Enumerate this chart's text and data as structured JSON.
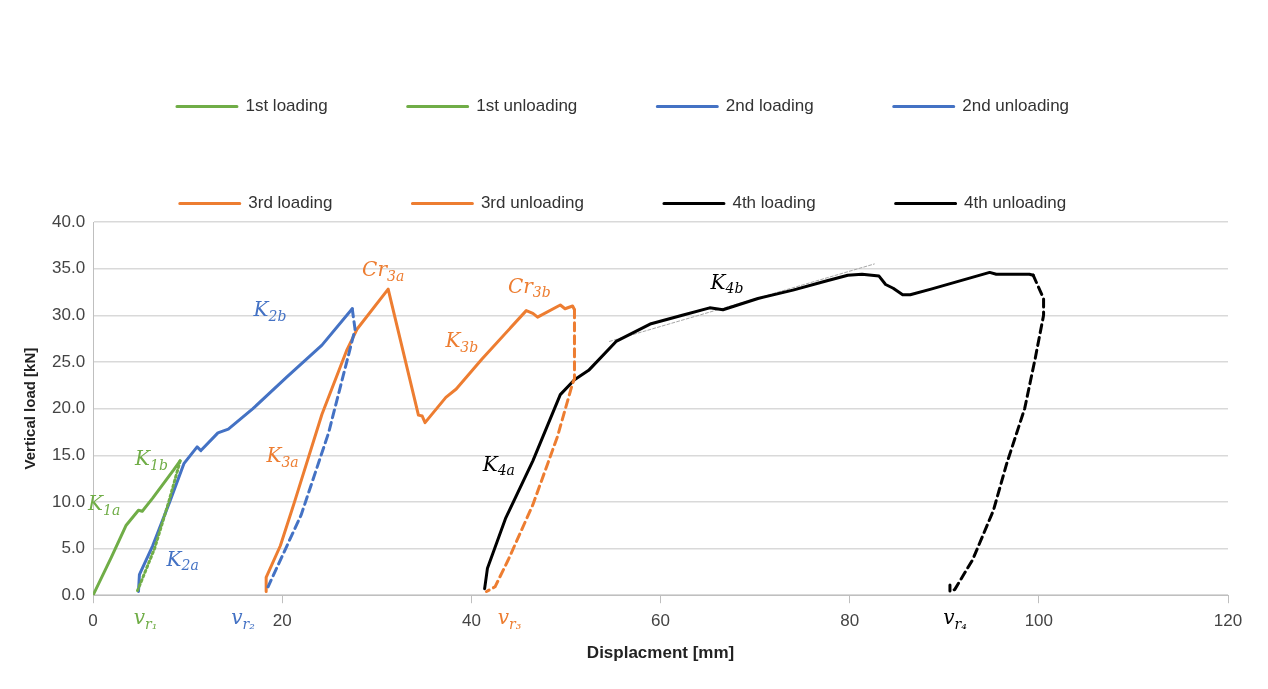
{
  "chart_data": {
    "type": "line",
    "xlabel": "Displacment [mm]",
    "ylabel": "Vertical load [kN]",
    "xlim": [
      0,
      120
    ],
    "xticks": [
      0,
      20,
      40,
      60,
      80,
      100,
      120
    ],
    "ylim": [
      0,
      40
    ],
    "yticks": [
      {
        "value": 0,
        "label": "0.0"
      },
      {
        "value": 5,
        "label": "5.0"
      },
      {
        "value": 10,
        "label": "10.0"
      },
      {
        "value": 15,
        "label": "15.0"
      },
      {
        "value": 20,
        "label": "20.0"
      },
      {
        "value": 25,
        "label": "25.0"
      },
      {
        "value": 30,
        "label": "30.0"
      },
      {
        "value": 35,
        "label": "35.0"
      },
      {
        "value": 40,
        "label": "40.0"
      }
    ],
    "grid": "y",
    "legend": "top",
    "marker": "none",
    "series": [
      {
        "name": "1st loading",
        "color": "#70ad47",
        "line_style": "solid",
        "x": [
          0,
          1.9,
          3.5,
          4.8,
          5.2,
          6.3,
          7.4,
          8.5,
          9.2
        ],
        "values": [
          0,
          4.0,
          7.5,
          9.1,
          9.0,
          10.4,
          11.9,
          13.4,
          14.4
        ]
      },
      {
        "name": "1st unloading",
        "color": "#70ad47",
        "line_style": "dotted",
        "x": [
          9.2,
          9.1,
          8.0,
          6.5,
          4.7
        ],
        "values": [
          14.4,
          14.0,
          10.0,
          5.0,
          0.5
        ]
      },
      {
        "name": "2nd loading",
        "color": "#4472c4",
        "line_style": "solid",
        "x": [
          4.8,
          4.9,
          6.3,
          8.1,
          9.6,
          11.0,
          11.4,
          13.2,
          14.3,
          16.9,
          20.5,
          24.2,
          27.4
        ],
        "values": [
          0.4,
          2.2,
          5.3,
          10.0,
          14.1,
          15.9,
          15.5,
          17.4,
          17.8,
          20.0,
          23.4,
          26.8,
          30.7
        ]
      },
      {
        "name": "2nd unloading",
        "color": "#4472c4",
        "line_style": "dashed",
        "x": [
          27.4,
          27.7,
          24.9,
          22.0,
          18.5
        ],
        "values": [
          30.7,
          28.5,
          17.4,
          8.6,
          0.9
        ]
      },
      {
        "name": "3rd loading",
        "color": "#ed7d31",
        "line_style": "solid",
        "x": [
          18.3,
          18.3,
          19.8,
          21.3,
          24.2,
          26.8,
          27.9,
          31.2,
          34.4,
          34.8,
          35.1,
          37.3,
          38.4,
          41.1,
          45.8,
          46.5,
          47.0,
          49.4,
          49.9,
          50.7,
          50.9
        ],
        "values": [
          0.4,
          1.9,
          5.3,
          10.0,
          19.4,
          26.2,
          28.5,
          32.8,
          19.3,
          19.2,
          18.5,
          21.2,
          22.1,
          25.3,
          30.5,
          30.2,
          29.8,
          31.1,
          30.7,
          31.0,
          30.6
        ]
      },
      {
        "name": "3rd unloading",
        "color": "#ed7d31",
        "line_style": "dashed",
        "x": [
          50.9,
          50.9,
          50.7,
          49.1,
          46.5,
          43.9,
          42.5,
          41.6
        ],
        "values": [
          30.6,
          23.2,
          22.7,
          17.0,
          9.7,
          3.8,
          0.9,
          0.4
        ]
      },
      {
        "name": "4th loading",
        "color": "#000000",
        "line_style": "solid",
        "x": [
          41.4,
          41.7,
          43.6,
          46.5,
          49.4,
          50.9,
          52.4,
          55.3,
          59.0,
          62.3,
          65.2,
          66.6,
          70.3,
          74.0,
          77.6,
          79.8,
          81.3,
          83.1,
          83.8,
          84.6,
          85.6,
          86.4,
          88.6,
          94.8,
          95.5,
          99.0,
          99.4
        ],
        "values": [
          0.7,
          2.9,
          8.2,
          14.4,
          21.5,
          23.1,
          24.1,
          27.2,
          29.1,
          30.0,
          30.8,
          30.6,
          31.8,
          32.7,
          33.7,
          34.3,
          34.4,
          34.2,
          33.3,
          32.9,
          32.2,
          32.2,
          32.8,
          34.6,
          34.4,
          34.4,
          34.3
        ]
      },
      {
        "name": "4th unloading",
        "color": "#000000",
        "line_style": "dashed",
        "x": [
          99.4,
          100.5,
          100.5,
          99.6,
          98.5,
          96.6,
          95.2,
          93.0,
          91.1,
          90.6,
          90.6
        ],
        "values": [
          34.3,
          31.8,
          30.0,
          25.3,
          20.0,
          14.1,
          9.1,
          3.8,
          0.6,
          0.4,
          1.1
        ]
      },
      {
        "color": "#a6a6a6",
        "line_style": "dashed",
        "x": [
          54.6,
          82.6
        ],
        "values": [
          27.2,
          35.5
        ]
      }
    ],
    "annotations": [
      {
        "text": "K$_{1a}$",
        "x": 3.5,
        "y": 7.5
      },
      {
        "text": "K$_{1b}$",
        "x": 8.5,
        "y": 13.4
      },
      {
        "text": "K$_{2a}$",
        "x": 6.3,
        "y": 5.3
      },
      {
        "text": "K$_{2b}$",
        "x": 24.2,
        "y": 26.8
      },
      {
        "text": "K$_{3a}$",
        "x": 21.3,
        "y": 10.0
      },
      {
        "text": "Cr$_{3a}$",
        "x": 31.2,
        "y": 32.8
      },
      {
        "text": "K$_{3b}$",
        "x": 41.1,
        "y": 25.3
      },
      {
        "text": "Cr$_{3b}$",
        "x": 45.8,
        "y": 30.5
      },
      {
        "text": "K$_{4a}$",
        "x": 46.5,
        "y": 14.4
      },
      {
        "text": "K$_{4b}$",
        "x": 66.6,
        "y": 30.6
      },
      {
        "text": "v$_{r₁}$",
        "x": 4.7,
        "y": 0.5
      },
      {
        "text": "v$_{r₂}$",
        "x": 18.5,
        "y": 0.9
      },
      {
        "text": "v$_{r₃}$",
        "x": 41.6,
        "y": 0.4
      },
      {
        "text": "v$_{r₄}$",
        "x": 90.6,
        "y": 0.4
      }
    ]
  }
}
